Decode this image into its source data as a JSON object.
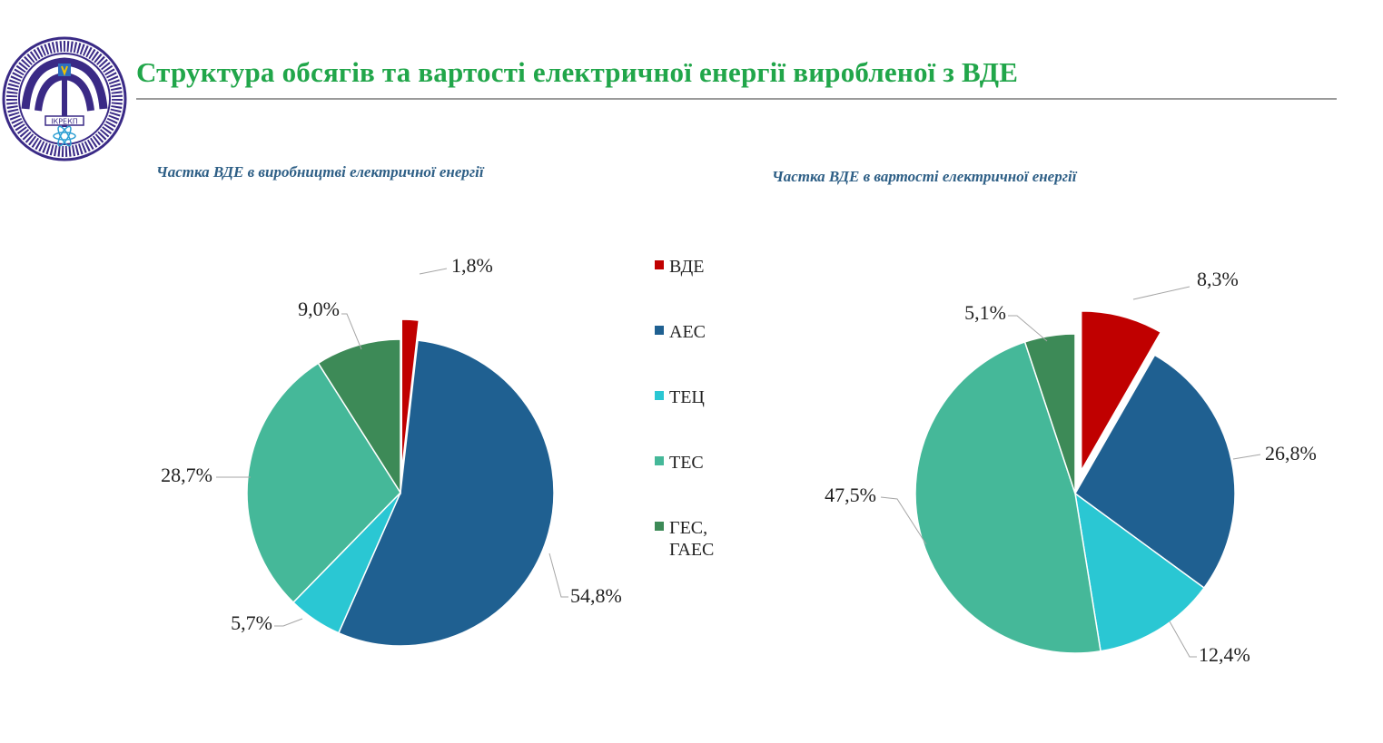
{
  "slide": {
    "title": "Структура обсягів та вартості електричної енергії виробленої з ВДЕ",
    "logo_text": "ІКРЕКП"
  },
  "colors": {
    "title": "#21a64a",
    "subtitle": "#2e5f86",
    "ВДЕ": "#c00000",
    "АЕС": "#1f6091",
    "ТЕЦ": "#2ac7d3",
    "ТЕС": "#45b899",
    "ГЕС, ГАЕС": "#3d8a57"
  },
  "legend": {
    "items": [
      {
        "key": "ВДЕ",
        "lines": [
          "ВДЕ"
        ]
      },
      {
        "key": "АЕС",
        "lines": [
          "АЕС"
        ]
      },
      {
        "key": "ТЕЦ",
        "lines": [
          "ТЕЦ"
        ]
      },
      {
        "key": "ТЕС",
        "lines": [
          "ТЕС"
        ]
      },
      {
        "key": "ГЕС, ГАЕС",
        "lines": [
          "ГЕС,",
          "ГАЕС"
        ]
      }
    ]
  },
  "chart_data": [
    {
      "type": "pie",
      "title": "Частка ВДЕ в виробництві електричної енергії",
      "exploded": "ВДЕ",
      "slices": [
        {
          "name": "ВДЕ",
          "value": 1.8,
          "label": "1,8%"
        },
        {
          "name": "АЕС",
          "value": 54.8,
          "label": "54,8%"
        },
        {
          "name": "ТЕЦ",
          "value": 5.7,
          "label": "5,7%"
        },
        {
          "name": "ТЕС",
          "value": 28.7,
          "label": "28,7%"
        },
        {
          "name": "ГЕС, ГАЕС",
          "value": 9.0,
          "label": "9,0%"
        }
      ],
      "legend": "right"
    },
    {
      "type": "pie",
      "title": "Частка ВДЕ в вартості електричної енергії",
      "exploded": "ВДЕ",
      "slices": [
        {
          "name": "ВДЕ",
          "value": 8.3,
          "label": "8,3%"
        },
        {
          "name": "АЕС",
          "value": 26.8,
          "label": "26,8%"
        },
        {
          "name": "ТЕЦ",
          "value": 12.4,
          "label": "12,4%"
        },
        {
          "name": "ТЕС",
          "value": 47.5,
          "label": "47,5%"
        },
        {
          "name": "ГЕС, ГАЕС",
          "value": 5.1,
          "label": "5,1%"
        }
      ]
    }
  ]
}
